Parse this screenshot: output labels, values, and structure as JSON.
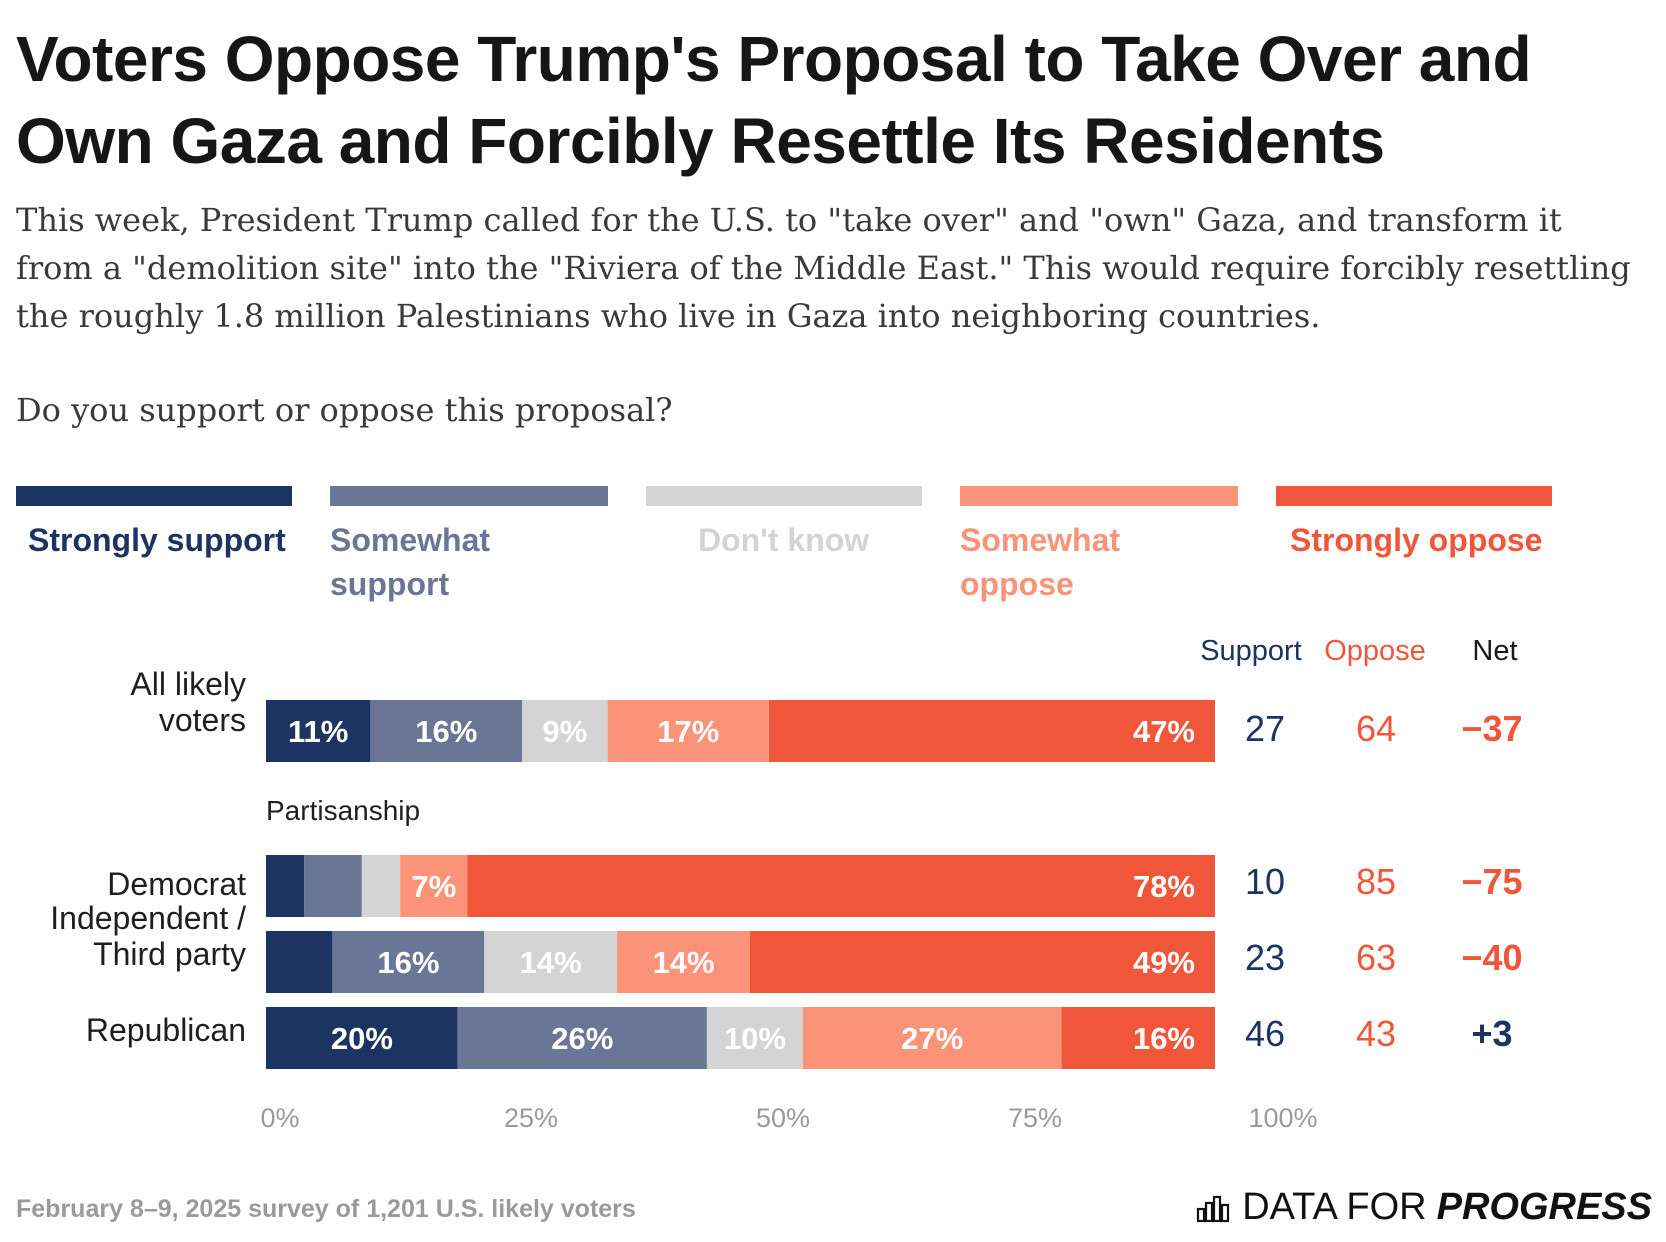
{
  "title": "Voters Oppose Trump's Proposal to Take Over and Own Gaza and Forcibly Resettle Its Residents",
  "subtitle": "This week, President Trump called for the U.S. to \"take over\" and \"own\" Gaza, and transform it from a \"demolition site\" into the \"Riviera of the Middle East.\" This would require forcibly resettling the roughly 1.8 million Palestinians who live in Gaza into neighboring countries.",
  "question": "Do you support or oppose this proposal?",
  "legend": [
    {
      "label": "Strongly support",
      "color": "#1c3461"
    },
    {
      "label": "Somewhat support",
      "color": "#6b7596"
    },
    {
      "label": "Don't know",
      "color": "#d4d4d4"
    },
    {
      "label": "Somewhat oppose",
      "color": "#fb9379"
    },
    {
      "label": "Strongly oppose",
      "color": "#f0563a"
    }
  ],
  "columns": {
    "support": "Support",
    "oppose": "Oppose",
    "net": "Net"
  },
  "colors": {
    "support_text": "#1c3461",
    "oppose_text": "#f0563a",
    "label_light": "#ffffff"
  },
  "chart_data": {
    "type": "bar",
    "orientation": "horizontal",
    "stacked": true,
    "xlim": [
      0,
      100
    ],
    "x_ticks": [
      "0%",
      "25%",
      "50%",
      "75%",
      "100%"
    ],
    "series_names": [
      "Strongly support",
      "Somewhat support",
      "Don't know",
      "Somewhat oppose",
      "Strongly oppose"
    ],
    "group_label": "Partisanship",
    "rows": [
      {
        "label": "All likely voters",
        "values": [
          11,
          16,
          9,
          17,
          47
        ],
        "labels": [
          "11%",
          "16%",
          "9%",
          "17%",
          "47%"
        ],
        "support": "27",
        "oppose": "64",
        "net": "−37"
      },
      {
        "label": "Democrat",
        "values": [
          4,
          6,
          4,
          7,
          78
        ],
        "labels": [
          "",
          "",
          "",
          "7%",
          "78%"
        ],
        "support": "10",
        "oppose": "85",
        "net": "−75"
      },
      {
        "label": "Independent / Third party",
        "values": [
          7,
          16,
          14,
          14,
          49
        ],
        "labels": [
          "",
          "16%",
          "14%",
          "14%",
          "49%"
        ],
        "support": "23",
        "oppose": "63",
        "net": "−40"
      },
      {
        "label": "Republican",
        "values": [
          20,
          26,
          10,
          27,
          16
        ],
        "labels": [
          "20%",
          "26%",
          "10%",
          "27%",
          "16%"
        ],
        "support": "46",
        "oppose": "43",
        "net": "+3"
      }
    ]
  },
  "footnote": "February 8–9, 2025 survey of 1,201 U.S. likely voters",
  "brand": {
    "part1": "DATA FOR",
    "part2": "PROGRESS",
    "icon": "bar-chart-icon"
  }
}
